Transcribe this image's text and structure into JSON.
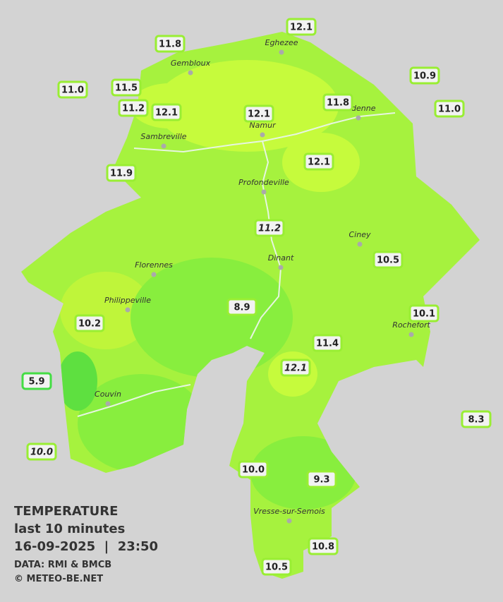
{
  "title": "TEMPERATURE",
  "subtitle": "last 10 minutes",
  "timestamp": "16-09-2025  |  23:50",
  "source": "DATA: RMI & BMCB",
  "credit": "© METEO-BE.NET",
  "cities": [
    "Eghezee",
    "Gembloux",
    "Andenne",
    "Namur",
    "Sambreville",
    "Profondeville",
    "Ciney",
    "Dinant",
    "Florennes",
    "Philippeville",
    "Rochefort",
    "Couvin",
    "Vresse-sur-Semois"
  ],
  "stations": [
    "12.1",
    "11.8",
    "10.9",
    "11.0",
    "11.5",
    "11.2",
    "12.1",
    "11.8",
    "11.0",
    "12.1",
    "11.9",
    "12.1",
    "11.2",
    "10.5",
    "8.9",
    "10.1",
    "10.2",
    "11.4",
    "12.1",
    "5.9",
    "8.3",
    "10.0",
    "10.0",
    "9.3",
    "10.8",
    "10.5"
  ]
}
